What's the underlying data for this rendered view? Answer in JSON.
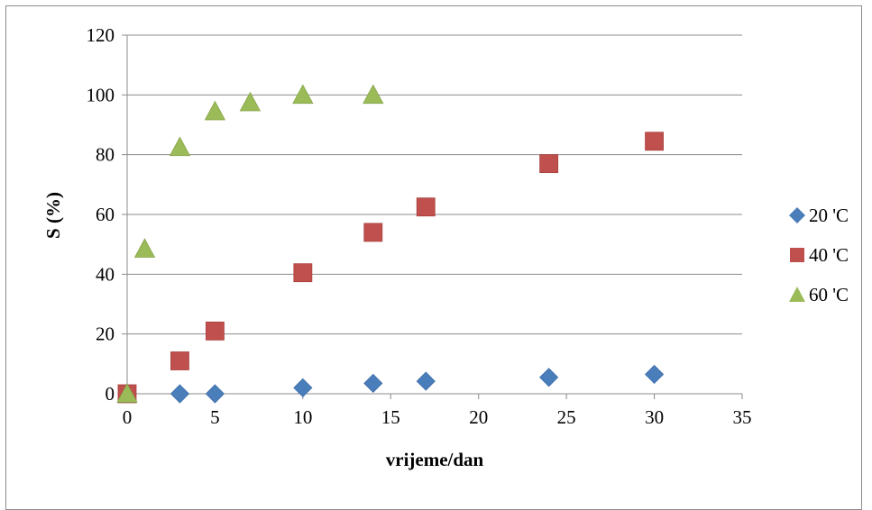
{
  "chart_data": {
    "type": "scatter",
    "title": "",
    "xlabel": "vrijeme/dan",
    "ylabel": "S (%)",
    "xlim": [
      0,
      35
    ],
    "ylim": [
      0,
      120
    ],
    "xticks": [
      "0",
      "5",
      "10",
      "15",
      "20",
      "25",
      "30",
      "35"
    ],
    "yticks": [
      "0",
      "20",
      "40",
      "60",
      "80",
      "100",
      "120"
    ],
    "grid": "horizontal",
    "legend_position": "right",
    "series": [
      {
        "name": "20 'C",
        "marker": "diamond",
        "color": "#4a7ebb",
        "points": [
          {
            "x": 0,
            "y": 0
          },
          {
            "x": 3,
            "y": 0
          },
          {
            "x": 5,
            "y": 0
          },
          {
            "x": 10,
            "y": 2
          },
          {
            "x": 14,
            "y": 3.5
          },
          {
            "x": 17,
            "y": 4.2
          },
          {
            "x": 24,
            "y": 5.5
          },
          {
            "x": 30,
            "y": 6.5
          }
        ]
      },
      {
        "name": "40 'C",
        "marker": "square",
        "color": "#c0504d",
        "points": [
          {
            "x": 0,
            "y": 0
          },
          {
            "x": 3,
            "y": 11
          },
          {
            "x": 5,
            "y": 21
          },
          {
            "x": 10,
            "y": 40.5
          },
          {
            "x": 14,
            "y": 54
          },
          {
            "x": 17,
            "y": 62.5
          },
          {
            "x": 24,
            "y": 77
          },
          {
            "x": 30,
            "y": 84.5
          }
        ]
      },
      {
        "name": "60 'C",
        "marker": "triangle",
        "color": "#9bbb59",
        "points": [
          {
            "x": 0,
            "y": 0
          },
          {
            "x": 1,
            "y": 48.5
          },
          {
            "x": 3,
            "y": 82.5
          },
          {
            "x": 5,
            "y": 94.5
          },
          {
            "x": 7,
            "y": 97.5
          },
          {
            "x": 10,
            "y": 100
          },
          {
            "x": 14,
            "y": 100
          }
        ]
      }
    ]
  }
}
